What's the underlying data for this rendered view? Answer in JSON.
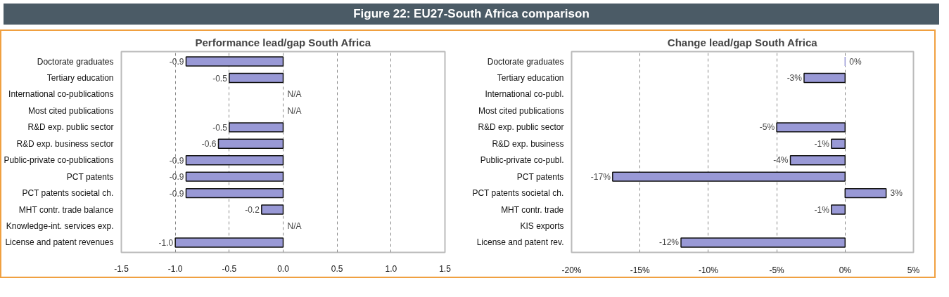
{
  "chart_data": [
    {
      "type": "bar",
      "orientation": "horizontal",
      "title": "Performance lead/gap South Africa",
      "annotations": [
        "Figure 22: EU27-South Africa comparison"
      ],
      "categories": [
        "Doctorate graduates",
        "Tertiary education",
        "International co-publications",
        "Most cited publications",
        "R&D exp. public sector",
        "R&D exp. business sector",
        "Public-private co-publications",
        "PCT patents",
        "PCT patents societal ch.",
        "MHT contr. trade balance",
        "Knowledge-int. services exp.",
        "License and patent revenues"
      ],
      "values": [
        -0.9,
        -0.5,
        null,
        null,
        -0.5,
        -0.6,
        -0.9,
        -0.9,
        -0.9,
        -0.2,
        null,
        -1.0
      ],
      "value_labels": [
        "-0.9",
        "-0.5",
        "N/A",
        "N/A",
        "-0.5",
        "-0.6",
        "-0.9",
        "-0.9",
        "-0.9",
        "-0.2",
        "N/A",
        "-1.0"
      ],
      "color": "#9999d6",
      "xlim": [
        -1.5,
        1.5
      ],
      "xticks": [
        {
          "value": -1.5,
          "label": "-1.5"
        },
        {
          "value": -1.0,
          "label": "-1.0"
        },
        {
          "value": -0.5,
          "label": "-0.5"
        },
        {
          "value": 0,
          "label": "0.0"
        },
        {
          "value": 0.5,
          "label": "0.5"
        },
        {
          "value": 1.0,
          "label": "1.0"
        },
        {
          "value": 1.5,
          "label": "1.5"
        }
      ],
      "grid": "x"
    },
    {
      "type": "bar",
      "orientation": "horizontal",
      "title": "Change lead/gap South Africa",
      "categories": [
        "Doctorate graduates",
        "Tertiary education",
        "International co-publ.",
        "Most cited publications",
        "R&D exp. public sector",
        "R&D exp. business",
        "Public-private co-publ.",
        "PCT patents",
        "PCT patents societal ch.",
        "MHT contr. trade",
        "KIS exports",
        "License and patent rev."
      ],
      "values": [
        0,
        -3,
        null,
        null,
        -5,
        -1,
        -4,
        -17,
        3,
        -1,
        null,
        -12
      ],
      "value_labels": [
        "0%",
        "-3%",
        null,
        null,
        "-5%",
        "-1%",
        "-4%",
        "-17%",
        "3%",
        "-1%",
        null,
        "-12%"
      ],
      "color": "#9999d6",
      "xlim": [
        -20,
        5
      ],
      "xticks": [
        {
          "value": -20,
          "label": "-20%"
        },
        {
          "value": -15,
          "label": "-15%"
        },
        {
          "value": -10,
          "label": "-10%"
        },
        {
          "value": -5,
          "label": "-5%"
        },
        {
          "value": 0,
          "label": "0%"
        },
        {
          "value": 5,
          "label": "5%"
        }
      ],
      "grid": "x"
    }
  ]
}
